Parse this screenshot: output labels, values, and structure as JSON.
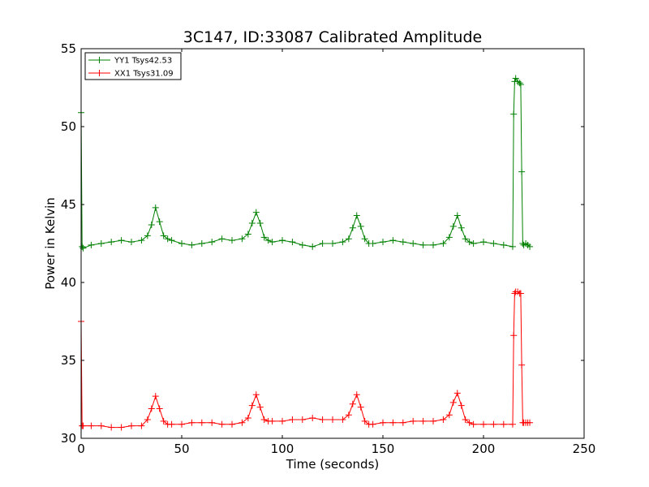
{
  "chart_data": {
    "type": "line",
    "title": "3C147, ID:33087 Calibrated Amplitude",
    "xlabel": "Time (seconds)",
    "ylabel": "Power in Kelvin",
    "xlim": [
      0,
      250
    ],
    "ylim": [
      30,
      55
    ],
    "xticks": [
      0,
      50,
      100,
      150,
      200,
      250
    ],
    "yticks": [
      30,
      35,
      40,
      45,
      50,
      55
    ],
    "grid": false,
    "legend_position": "top-left",
    "marker": "plus",
    "series": [
      {
        "name": "YY1 Tsys42.53",
        "color": "#008000",
        "x": [
          0,
          0.5,
          1,
          5,
          10,
          15,
          20,
          25,
          30,
          33,
          35,
          37,
          39,
          41,
          43,
          45,
          50,
          55,
          60,
          65,
          70,
          75,
          80,
          83,
          85,
          87,
          89,
          91,
          93,
          95,
          100,
          105,
          110,
          115,
          120,
          125,
          130,
          133,
          135,
          137,
          139,
          141,
          143,
          145,
          150,
          155,
          160,
          165,
          170,
          175,
          180,
          183,
          185,
          187,
          189,
          191,
          193,
          195,
          200,
          205,
          210,
          214.5,
          215,
          215.5,
          216,
          217,
          218,
          218.5,
          219,
          219.5,
          220,
          221,
          222,
          223
        ],
        "y": [
          50.9,
          42.3,
          42.2,
          42.4,
          42.5,
          42.6,
          42.7,
          42.6,
          42.7,
          43.0,
          43.7,
          44.8,
          43.9,
          43.0,
          42.8,
          42.7,
          42.5,
          42.4,
          42.5,
          42.6,
          42.8,
          42.7,
          42.8,
          43.1,
          43.8,
          44.5,
          43.8,
          42.9,
          42.7,
          42.6,
          42.7,
          42.6,
          42.4,
          42.3,
          42.5,
          42.5,
          42.6,
          42.8,
          43.5,
          44.3,
          43.6,
          42.8,
          42.5,
          42.5,
          42.6,
          42.7,
          42.6,
          42.5,
          42.4,
          42.4,
          42.5,
          42.9,
          43.6,
          44.3,
          43.5,
          42.8,
          42.6,
          42.5,
          42.6,
          42.5,
          42.4,
          42.3,
          50.8,
          52.9,
          53.1,
          52.9,
          52.8,
          52.7,
          47.1,
          42.5,
          42.4,
          42.5,
          42.4,
          42.3
        ]
      },
      {
        "name": "XX1 Tsys31.09",
        "color": "#ff0000",
        "x": [
          0,
          0.5,
          1,
          5,
          10,
          15,
          20,
          25,
          30,
          33,
          35,
          37,
          39,
          41,
          43,
          45,
          50,
          55,
          60,
          65,
          70,
          75,
          80,
          83,
          85,
          87,
          89,
          91,
          93,
          95,
          100,
          105,
          110,
          115,
          120,
          125,
          130,
          133,
          135,
          137,
          139,
          141,
          143,
          145,
          150,
          155,
          160,
          165,
          170,
          175,
          180,
          183,
          185,
          187,
          189,
          191,
          193,
          195,
          200,
          205,
          210,
          214.5,
          215,
          215.5,
          216,
          217,
          218,
          218.5,
          219,
          219.5,
          220,
          221,
          222,
          223
        ],
        "y": [
          37.5,
          30.8,
          30.8,
          30.8,
          30.8,
          30.7,
          30.7,
          30.8,
          30.8,
          31.2,
          31.9,
          32.7,
          31.9,
          31.1,
          30.9,
          30.9,
          30.9,
          31.0,
          31.0,
          31.0,
          30.9,
          30.9,
          31.0,
          31.3,
          32.1,
          32.8,
          32.0,
          31.2,
          31.1,
          31.1,
          31.1,
          31.2,
          31.2,
          31.3,
          31.2,
          31.2,
          31.2,
          31.5,
          32.2,
          32.8,
          32.0,
          31.1,
          30.9,
          30.9,
          31.0,
          31.0,
          31.0,
          31.1,
          31.1,
          31.1,
          31.2,
          31.5,
          32.3,
          32.9,
          32.1,
          31.2,
          31.0,
          30.9,
          30.9,
          30.9,
          30.9,
          30.9,
          36.6,
          39.3,
          39.4,
          39.4,
          39.3,
          39.3,
          34.7,
          31.0,
          31.0,
          31.0,
          31.0,
          31.0
        ]
      }
    ]
  }
}
